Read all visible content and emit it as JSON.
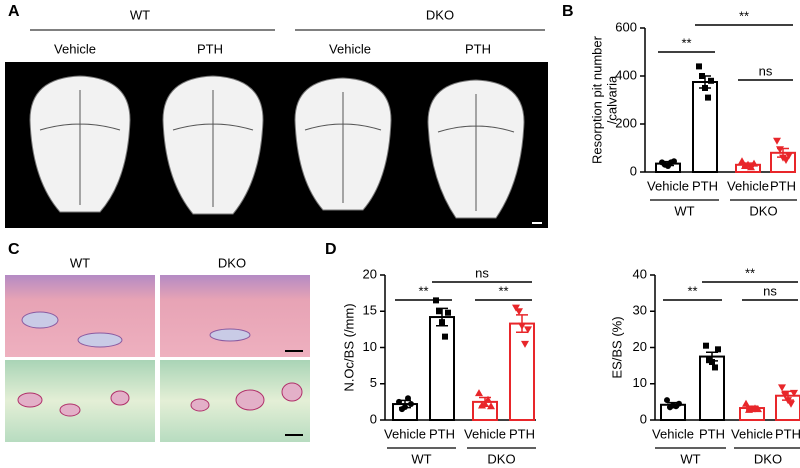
{
  "panel_labels": [
    "A",
    "B",
    "C",
    "D"
  ],
  "panel_a": {
    "groups": [
      "WT",
      "DKO"
    ],
    "conditions": [
      "Vehicle",
      "PTH",
      "Vehicle",
      "PTH"
    ]
  },
  "panel_c": {
    "groups": [
      "WT",
      "DKO"
    ]
  },
  "chart_data": [
    {
      "type": "bar",
      "ylabel": [
        "Resorption pit number",
        "/calvaria"
      ],
      "categories": [
        "Vehicle",
        "PTH",
        "Vehicle",
        "PTH"
      ],
      "groups": [
        "WT",
        "DKO"
      ],
      "values": [
        35,
        375,
        30,
        80
      ],
      "errors": [
        8,
        25,
        7,
        18
      ],
      "points": [
        [
          40,
          30,
          25,
          40,
          45
        ],
        [
          440,
          400,
          350,
          310,
          380
        ],
        [
          45,
          25,
          30,
          20,
          35
        ],
        [
          130,
          95,
          60,
          50,
          70
        ]
      ],
      "colors": [
        "#000000",
        "#000000",
        "#e8262a",
        "#e8262a"
      ],
      "ylim": [
        0,
        600
      ],
      "yticks": [
        0,
        200,
        400,
        600
      ],
      "annotations": [
        "**",
        "**",
        "ns"
      ]
    },
    {
      "type": "bar",
      "ylabel": "N.Oc/BS (/mm)",
      "categories": [
        "Vehicle",
        "PTH",
        "Vehicle",
        "PTH"
      ],
      "groups": [
        "WT",
        "DKO"
      ],
      "values": [
        2.2,
        14.2,
        2.5,
        13.3
      ],
      "errors": [
        0.5,
        1.2,
        0.6,
        1.2
      ],
      "points": [
        [
          2.5,
          1.5,
          1.8,
          3.0,
          2.2
        ],
        [
          16.5,
          15.0,
          13.5,
          11.5,
          14.8
        ],
        [
          3.7,
          2.0,
          2.2,
          2.8,
          1.9
        ],
        [
          15.5,
          15.0,
          13.0,
          10.5,
          12.5
        ]
      ],
      "colors": [
        "#000000",
        "#000000",
        "#e8262a",
        "#e8262a"
      ],
      "ylim": [
        0,
        20
      ],
      "yticks": [
        0,
        5,
        10,
        15,
        20
      ],
      "annotations": [
        "**",
        "ns",
        "**"
      ]
    },
    {
      "type": "bar",
      "ylabel": "ES/BS (%)",
      "categories": [
        "Vehicle",
        "PTH",
        "Vehicle",
        "PTH"
      ],
      "groups": [
        "WT",
        "DKO"
      ],
      "values": [
        4.2,
        17.5,
        3.3,
        6.7
      ],
      "errors": [
        0.6,
        1.2,
        0.5,
        1.2
      ],
      "points": [
        [
          5.5,
          3.5,
          4.0,
          3.8,
          4.5
        ],
        [
          20.5,
          16.5,
          16.0,
          14.5,
          19.5
        ],
        [
          4.5,
          2.8,
          3.0,
          3.2,
          3.0
        ],
        [
          9.0,
          7.0,
          5.5,
          4.5,
          7.5
        ]
      ],
      "colors": [
        "#000000",
        "#000000",
        "#e8262a",
        "#e8262a"
      ],
      "ylim": [
        0,
        40
      ],
      "yticks": [
        0,
        10,
        20,
        30,
        40
      ],
      "annotations": [
        "**",
        "**",
        "ns"
      ]
    }
  ]
}
